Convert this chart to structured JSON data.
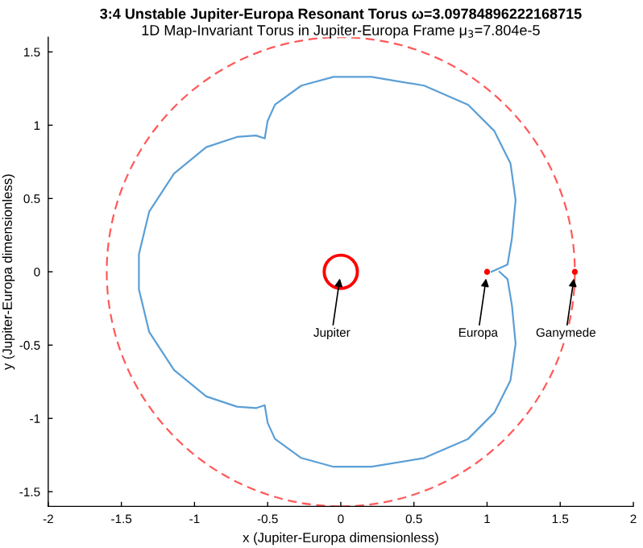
{
  "chart_data": {
    "type": "line",
    "title": "3:4 Unstable Jupiter-Europa Resonant Torus ω=3.09784896222168715",
    "subtitle": "1D Map-Invariant Torus in Jupiter-Europa Frame μ$_{3}$=7.804e-5",
    "xlabel": "x (Jupiter-Europa dimensionless)",
    "ylabel": "y (Jupiter-Europa dimensionless)",
    "xlim": [
      -2,
      2
    ],
    "ylim": [
      -1.6,
      1.6
    ],
    "xticks": [
      -2,
      -1.5,
      -1,
      -0.5,
      0,
      0.5,
      1,
      1.5,
      2
    ],
    "yticks": [
      -1.5,
      -1,
      -0.5,
      0,
      0.5,
      1,
      1.5
    ],
    "grid": false,
    "legend": false,
    "series": [
      {
        "color": "#5b9fd6",
        "line_style": "solid",
        "x": [
          1.03,
          1.14,
          1.17,
          1.195,
          1.16,
          1.05,
          0.87,
          0.57,
          0.21,
          -0.05,
          -0.27,
          -0.45,
          -0.5,
          -0.52,
          -0.58,
          -0.71,
          -0.92,
          -1.14,
          -1.31,
          -1.38,
          -1.38,
          -1.38,
          -1.31,
          -1.14,
          -0.92,
          -0.71,
          -0.58,
          -0.52,
          -0.5,
          -0.45,
          -0.27,
          -0.05,
          0.21,
          0.57,
          0.87,
          1.05,
          1.16,
          1.195,
          1.17,
          1.14,
          1.085
        ],
        "values": [
          0,
          0.05,
          0.23,
          0.49,
          0.74,
          0.96,
          1.14,
          1.27,
          1.33,
          1.33,
          1.27,
          1.14,
          1.03,
          0.91,
          0.93,
          0.92,
          0.85,
          0.67,
          0.41,
          0.12,
          0,
          -0.12,
          -0.41,
          -0.67,
          -0.85,
          -0.92,
          -0.93,
          -0.91,
          -1.03,
          -1.14,
          -1.27,
          -1.33,
          -1.33,
          -1.27,
          -1.14,
          -0.96,
          -0.74,
          -0.49,
          -0.23,
          -0.05,
          0
        ]
      },
      {
        "type": "bubble",
        "color": "#ff0000",
        "x": [
          0
        ],
        "values": [
          0
        ],
        "sizes": [
          1
        ]
      },
      {
        "type": "scatter",
        "color": "#ff0000",
        "marker": "circle",
        "x": [
          1,
          1.6
        ],
        "values": [
          0,
          0
        ]
      }
    ],
    "annotations": [
      {
        "text": "Jupiter",
        "x": 0,
        "y": 0
      },
      {
        "text": "Europa",
        "x": 1,
        "y": 0
      },
      {
        "text": "Ganymede",
        "x": 1.6,
        "y": 0
      }
    ]
  }
}
